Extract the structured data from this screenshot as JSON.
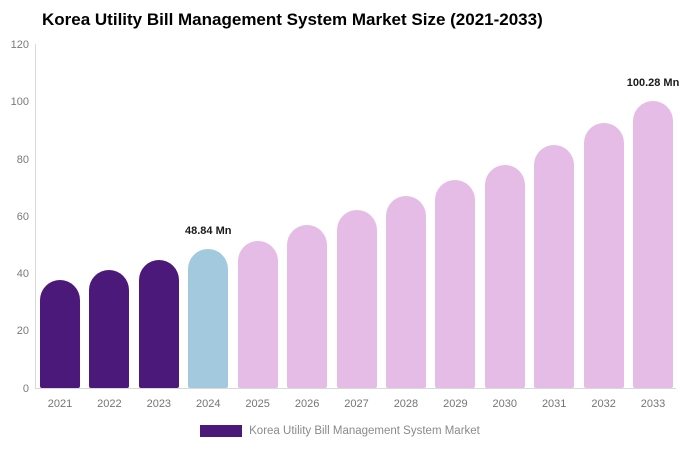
{
  "chart_data": {
    "type": "bar",
    "title": "Korea Utility Bill Management System Market Size (2021-2033)",
    "xlabel": "",
    "ylabel": "",
    "categories": [
      "2021",
      "2022",
      "2023",
      "2024",
      "2025",
      "2026",
      "2027",
      "2028",
      "2029",
      "2030",
      "2031",
      "2032",
      "2033"
    ],
    "values": [
      37.9,
      41.3,
      44.9,
      48.84,
      51.6,
      57.0,
      62.2,
      67.2,
      72.8,
      78.1,
      85.1,
      92.7,
      100.28
    ],
    "bar_colors": [
      "#4B1979",
      "#4B1979",
      "#4B1979",
      "#A2C9DE",
      "#E4BCE6",
      "#E4BCE6",
      "#E4BCE6",
      "#E4BCE6",
      "#E4BCE6",
      "#E4BCE6",
      "#E4BCE6",
      "#E4BCE6",
      "#E4BCE6"
    ],
    "ylim": [
      0,
      120
    ],
    "yticks": [
      0,
      20,
      40,
      60,
      80,
      100,
      120
    ],
    "grid": false,
    "legend_position": "bottom",
    "annotations": [
      {
        "index": 3,
        "text": "48.84 Mn"
      },
      {
        "index": 12,
        "text": "100.28 Mn"
      }
    ],
    "legend": {
      "swatch_color": "#4B1979",
      "label": "Korea Utility Bill Management System Market"
    },
    "colors": {
      "historical_bars": "#4B1979",
      "current_year_bar": "#A2C9DE",
      "forecast_bars": "#E4BCE6",
      "axis_line": "#d9d9d9",
      "tick_text": "#7a7a7a",
      "title_text": "#000000"
    }
  }
}
